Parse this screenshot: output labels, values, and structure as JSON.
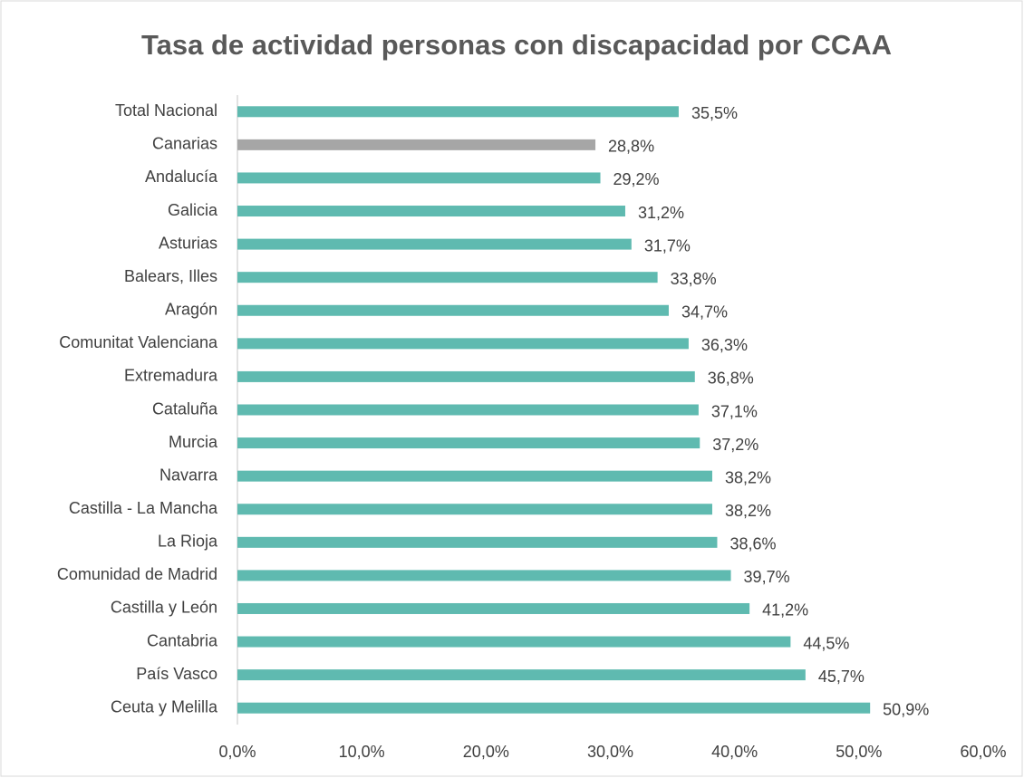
{
  "chart_data": {
    "type": "barh",
    "title": "Tasa de actividad personas con discapacidad por CCAA",
    "categories": [
      "Total Nacional",
      "Canarias",
      "Andalucía",
      "Galicia",
      "Asturias",
      "Balears, Illes",
      "Aragón",
      "Comunitat Valenciana",
      "Extremadura",
      "Cataluña",
      "Murcia",
      "Navarra",
      "Castilla - La Mancha",
      "La Rioja",
      "Comunidad de Madrid",
      "Castilla y León",
      "Cantabria",
      "País Vasco",
      "Ceuta y Melilla"
    ],
    "values": [
      35.5,
      28.8,
      29.2,
      31.2,
      31.7,
      33.8,
      34.7,
      36.3,
      36.8,
      37.1,
      37.2,
      38.2,
      38.2,
      38.6,
      39.7,
      41.2,
      44.5,
      45.7,
      50.9
    ],
    "value_labels": [
      "35,5%",
      "28,8%",
      "29,2%",
      "31,2%",
      "31,7%",
      "33,8%",
      "34,7%",
      "36,3%",
      "36,8%",
      "37,1%",
      "37,2%",
      "38,2%",
      "38,2%",
      "38,6%",
      "39,7%",
      "41,2%",
      "44,5%",
      "45,7%",
      "50,9%"
    ],
    "colors": [
      "#5fbab0",
      "#a6a6a6",
      "#5fbab0",
      "#5fbab0",
      "#5fbab0",
      "#5fbab0",
      "#5fbab0",
      "#5fbab0",
      "#5fbab0",
      "#5fbab0",
      "#5fbab0",
      "#5fbab0",
      "#5fbab0",
      "#5fbab0",
      "#5fbab0",
      "#5fbab0",
      "#5fbab0",
      "#5fbab0",
      "#5fbab0"
    ],
    "xlim": [
      0,
      60
    ],
    "xticks": [
      {
        "value": 0,
        "label": "0,0%"
      },
      {
        "value": 10,
        "label": "10,0%"
      },
      {
        "value": 20,
        "label": "20,0%"
      },
      {
        "value": 30,
        "label": "30,0%"
      },
      {
        "value": 40,
        "label": "40,0%"
      },
      {
        "value": 50,
        "label": "50,0%"
      },
      {
        "value": 60,
        "label": "60,0%"
      }
    ],
    "grid": false
  }
}
